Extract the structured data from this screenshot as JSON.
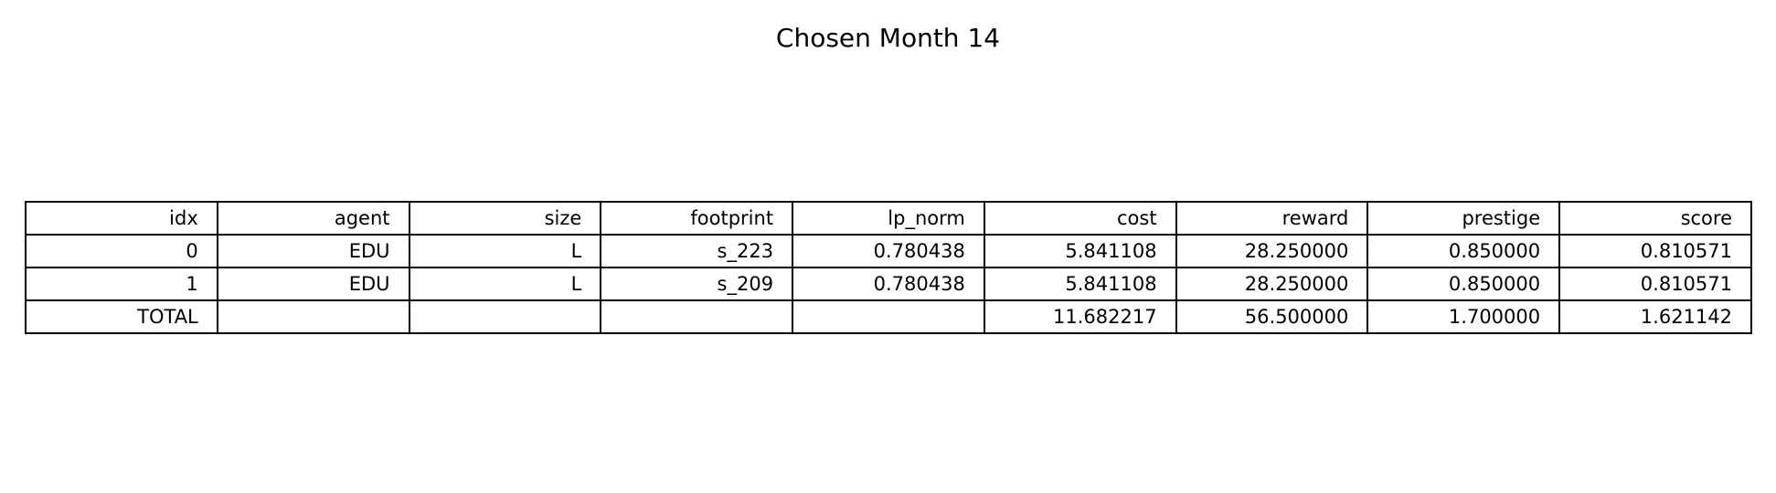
{
  "chart_data": {
    "type": "table",
    "title": "Chosen Month 14",
    "columns": [
      "idx",
      "agent",
      "size",
      "footprint",
      "lp_norm",
      "cost",
      "reward",
      "prestige",
      "score"
    ],
    "rows": [
      [
        "0",
        "EDU",
        "L",
        "s_223",
        "0.780438",
        "5.841108",
        "28.250000",
        "0.850000",
        "0.810571"
      ],
      [
        "1",
        "EDU",
        "L",
        "s_209",
        "0.780438",
        "5.841108",
        "28.250000",
        "0.850000",
        "0.810571"
      ],
      [
        "TOTAL",
        "",
        "",
        "",
        "",
        "11.682217",
        "56.500000",
        "1.700000",
        "1.621142"
      ]
    ]
  }
}
